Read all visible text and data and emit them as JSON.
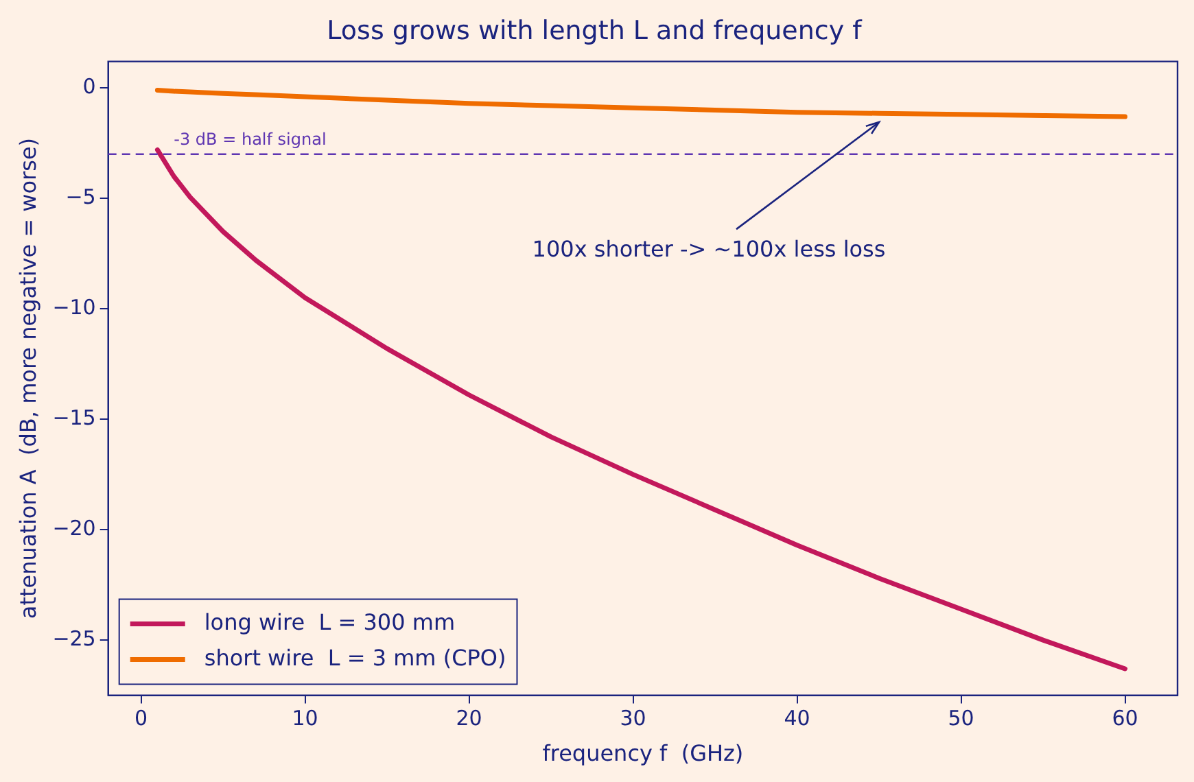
{
  "chart_data": {
    "type": "line",
    "title": "Loss grows with length L and frequency f",
    "xlabel": "frequency f  (GHz)",
    "ylabel": "attenuation A  (dB, more negative = worse)",
    "x": [
      1,
      2,
      3,
      5,
      7,
      10,
      15,
      20,
      25,
      30,
      35,
      40,
      45,
      50,
      55,
      60
    ],
    "series": [
      {
        "name": "long wire  L = 300 mm",
        "color": "#c2185b",
        "values": [
          -2.8,
          -4.0,
          -4.95,
          -6.5,
          -7.8,
          -9.5,
          -11.8,
          -13.9,
          -15.8,
          -17.5,
          -19.1,
          -20.7,
          -22.2,
          -23.6,
          -25.0,
          -26.3
        ]
      },
      {
        "name": "short wire  L = 3 mm (CPO)",
        "color": "#ef6c00",
        "values": [
          -0.1,
          -0.15,
          -0.18,
          -0.25,
          -0.3,
          -0.4,
          -0.55,
          -0.7,
          -0.8,
          -0.9,
          -1.0,
          -1.1,
          -1.15,
          -1.2,
          -1.25,
          -1.3
        ]
      }
    ],
    "xlim": [
      -2,
      63.2
    ],
    "xticks": [
      0,
      10,
      20,
      30,
      40,
      50,
      60
    ],
    "ylim": [
      -27.5,
      1.2
    ],
    "yticks": [
      {
        "value": -25,
        "label": "−25"
      },
      {
        "value": -20,
        "label": "−20"
      },
      {
        "value": -15,
        "label": "−15"
      },
      {
        "value": -10,
        "label": "−10"
      },
      {
        "value": -5,
        "label": "−5"
      },
      0
    ],
    "ref_lines": [
      {
        "axis": "y",
        "value": -3,
        "label": "-3 dB = half signal",
        "color": "#5e35b1",
        "line_style": "dashed"
      }
    ],
    "annotations": [
      {
        "text": "100x shorter -> ~100x less loss",
        "x": 45,
        "y": -1.3
      }
    ],
    "legend": "bottom left",
    "grid": false,
    "marker": "none",
    "line_style": "solid"
  }
}
